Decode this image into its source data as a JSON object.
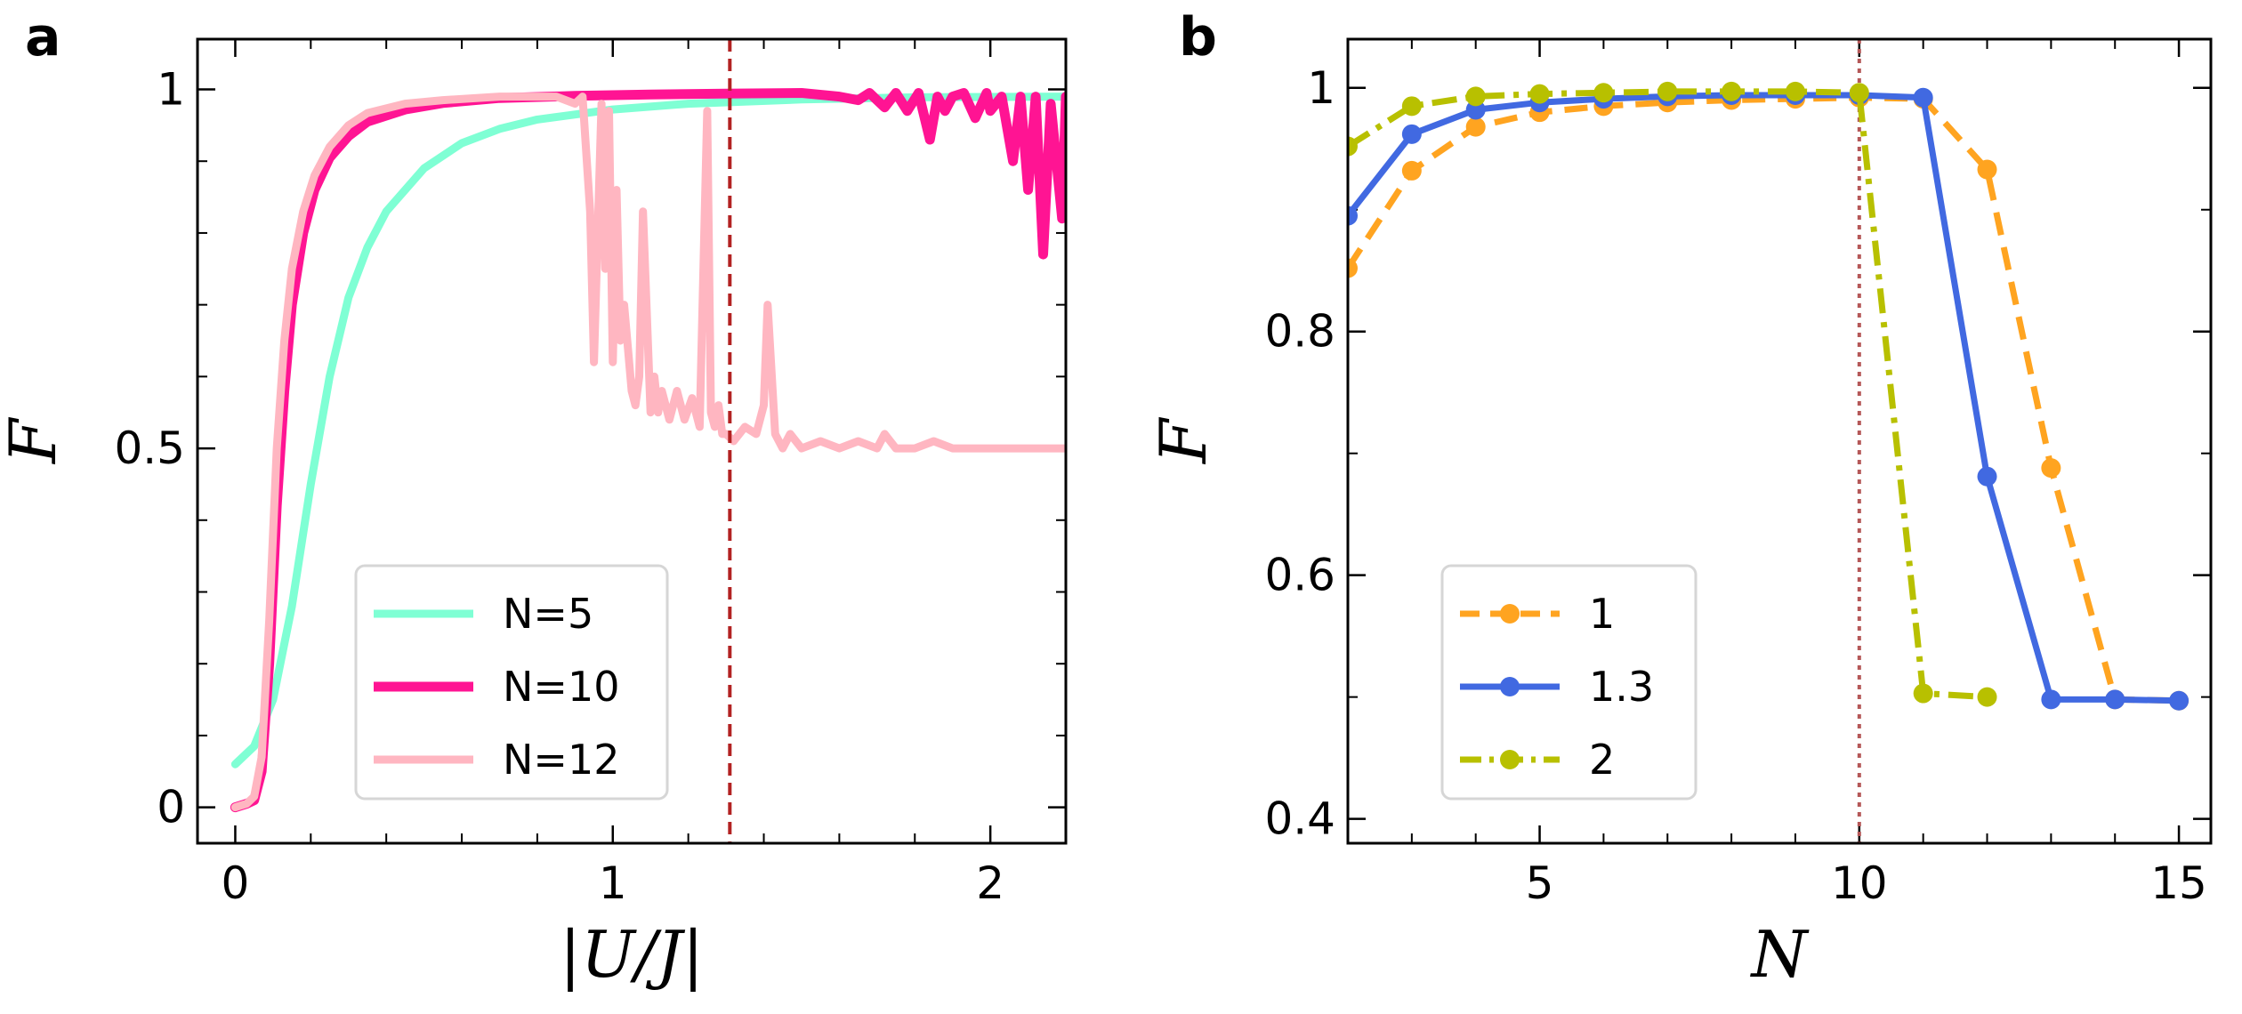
{
  "chart_data": [
    {
      "panel": "a",
      "type": "line",
      "xlabel": "|U/J|",
      "ylabel": "F",
      "xlim": [
        -0.1,
        2.2
      ],
      "ylim": [
        -0.05,
        1.07
      ],
      "xticks": [
        0,
        1,
        2
      ],
      "xtick_labels": [
        "0",
        "1",
        "2"
      ],
      "yticks": [
        0,
        0.5,
        1
      ],
      "ytick_labels": [
        "0",
        "0.5",
        "1"
      ],
      "xminor": [
        0.2,
        0.4,
        0.6,
        0.8,
        1.2,
        1.4,
        1.6,
        1.8,
        2.2
      ],
      "yminor": [
        0.1,
        0.2,
        0.3,
        0.4,
        0.6,
        0.7,
        0.8,
        0.9
      ],
      "vline": {
        "x": 1.31,
        "color": "#b22222",
        "style": "dashed"
      },
      "legend_position": "lower-center",
      "series": [
        {
          "name": "N=5",
          "color": "#7fffd4",
          "x": [
            0,
            0.05,
            0.1,
            0.15,
            0.2,
            0.25,
            0.3,
            0.35,
            0.4,
            0.5,
            0.6,
            0.7,
            0.8,
            1.0,
            1.2,
            1.5,
            1.8,
            2.2
          ],
          "y": [
            0.06,
            0.085,
            0.15,
            0.28,
            0.45,
            0.6,
            0.71,
            0.78,
            0.83,
            0.89,
            0.925,
            0.945,
            0.958,
            0.972,
            0.98,
            0.986,
            0.989,
            0.99
          ]
        },
        {
          "name": "N=10",
          "color": "#ff1493",
          "x": [
            0,
            0.03,
            0.05,
            0.07,
            0.09,
            0.11,
            0.13,
            0.15,
            0.18,
            0.21,
            0.25,
            0.3,
            0.35,
            0.45,
            0.55,
            0.7,
            0.9,
            1.1,
            1.3,
            1.5,
            1.6,
            1.65,
            1.68,
            1.72,
            1.75,
            1.78,
            1.81,
            1.84,
            1.86,
            1.88,
            1.9,
            1.93,
            1.96,
            1.99,
            2.0,
            2.03,
            2.06,
            2.08,
            2.1,
            2.12,
            2.14,
            2.16,
            2.19,
            2.2
          ],
          "y": [
            0,
            0.005,
            0.01,
            0.05,
            0.2,
            0.42,
            0.58,
            0.7,
            0.8,
            0.86,
            0.905,
            0.935,
            0.955,
            0.972,
            0.981,
            0.988,
            0.991,
            0.993,
            0.994,
            0.995,
            0.99,
            0.985,
            0.995,
            0.975,
            0.995,
            0.97,
            0.995,
            0.93,
            0.99,
            0.97,
            0.99,
            0.995,
            0.96,
            0.995,
            0.97,
            0.99,
            0.9,
            0.99,
            0.86,
            0.99,
            0.77,
            0.98,
            0.82,
            0.99
          ]
        },
        {
          "name": "N=12",
          "color": "#ffb6c1",
          "x": [
            0,
            0.03,
            0.05,
            0.07,
            0.09,
            0.11,
            0.13,
            0.15,
            0.18,
            0.21,
            0.25,
            0.3,
            0.35,
            0.45,
            0.55,
            0.7,
            0.85,
            0.9,
            0.92,
            0.94,
            0.95,
            0.97,
            0.98,
            0.99,
            1.0,
            1.01,
            1.02,
            1.03,
            1.05,
            1.06,
            1.07,
            1.08,
            1.1,
            1.11,
            1.12,
            1.13,
            1.15,
            1.17,
            1.19,
            1.21,
            1.23,
            1.25,
            1.26,
            1.27,
            1.28,
            1.29,
            1.3,
            1.32,
            1.35,
            1.38,
            1.4,
            1.41,
            1.43,
            1.45,
            1.47,
            1.5,
            1.55,
            1.6,
            1.65,
            1.7,
            1.72,
            1.75,
            1.8,
            1.85,
            1.9,
            2.0,
            2.1,
            2.2
          ],
          "y": [
            0,
            0.005,
            0.015,
            0.07,
            0.26,
            0.5,
            0.65,
            0.75,
            0.83,
            0.88,
            0.92,
            0.95,
            0.967,
            0.98,
            0.985,
            0.99,
            0.99,
            0.98,
            0.99,
            0.83,
            0.62,
            0.98,
            0.75,
            0.97,
            0.62,
            0.86,
            0.65,
            0.7,
            0.58,
            0.56,
            0.6,
            0.83,
            0.55,
            0.6,
            0.55,
            0.58,
            0.54,
            0.58,
            0.54,
            0.57,
            0.53,
            0.97,
            0.55,
            0.53,
            0.56,
            0.52,
            0.52,
            0.51,
            0.53,
            0.52,
            0.56,
            0.7,
            0.52,
            0.5,
            0.52,
            0.5,
            0.51,
            0.5,
            0.51,
            0.5,
            0.52,
            0.5,
            0.5,
            0.51,
            0.5,
            0.5,
            0.5,
            0.5
          ]
        }
      ]
    },
    {
      "panel": "b",
      "type": "line",
      "xlabel": "N",
      "ylabel": "F",
      "xlim": [
        2,
        15.5
      ],
      "ylim": [
        0.38,
        1.04
      ],
      "xticks": [
        5,
        10,
        15
      ],
      "xtick_labels": [
        "5",
        "10",
        "15"
      ],
      "yticks": [
        0.4,
        0.6,
        0.8,
        1
      ],
      "ytick_labels": [
        "0.4",
        "0.6",
        "0.8",
        "1"
      ],
      "xminor": [
        2,
        3,
        4,
        6,
        7,
        8,
        9,
        11,
        12,
        13,
        14
      ],
      "yminor": [
        0.5,
        0.7,
        0.9
      ],
      "vline": {
        "x": 10,
        "color": "#b55858",
        "style": "dotted"
      },
      "legend_position": "lower-left",
      "series": [
        {
          "name": "1",
          "color": "#ffa420",
          "style": "dashed",
          "x": [
            2,
            3,
            4,
            5,
            6,
            7,
            8,
            9,
            10,
            11,
            12,
            13,
            14,
            15
          ],
          "y": [
            0.852,
            0.932,
            0.968,
            0.98,
            0.985,
            0.988,
            0.99,
            0.991,
            0.992,
            0.991,
            0.933,
            0.688,
            0.498,
            0.497
          ]
        },
        {
          "name": "1.3",
          "color": "#4169e1",
          "style": "solid",
          "x": [
            2,
            3,
            4,
            5,
            6,
            7,
            8,
            9,
            10,
            11,
            12,
            13,
            14,
            15
          ],
          "y": [
            0.895,
            0.962,
            0.982,
            0.988,
            0.991,
            0.993,
            0.994,
            0.994,
            0.994,
            0.992,
            0.681,
            0.498,
            0.498,
            0.497
          ]
        },
        {
          "name": "2",
          "color": "#b8c000",
          "style": "dashdot",
          "x": [
            2,
            3,
            4,
            5,
            6,
            7,
            8,
            9,
            10,
            11,
            12
          ],
          "y": [
            0.952,
            0.985,
            0.993,
            0.995,
            0.996,
            0.997,
            0.997,
            0.997,
            0.996,
            0.503,
            0.5
          ]
        }
      ]
    }
  ]
}
